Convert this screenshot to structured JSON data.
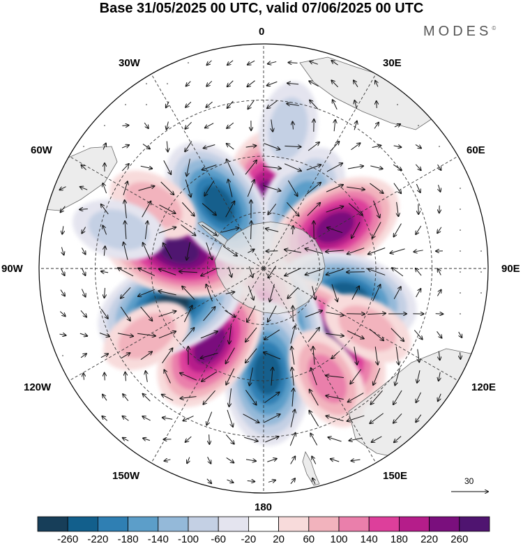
{
  "title": "Base 31/05/2025 00 UTC, valid 07/06/2025 00 UTC",
  "brand": "MODES",
  "brand_mark": "©",
  "longitude_labels": {
    "lon_0": "0",
    "lon_30e": "30E",
    "lon_60e": "60E",
    "lon_90e": "90E",
    "lon_120e": "120E",
    "lon_150e": "150E",
    "lon_180": "180",
    "lon_150w": "150W",
    "lon_120w": "120W",
    "lon_90w": "90W",
    "lon_60w": "60W",
    "lon_30w": "30W"
  },
  "reference_vector": {
    "value": "30"
  },
  "colorbar": {
    "ticks": [
      "-260",
      "-220",
      "-180",
      "-140",
      "-100",
      "-60",
      "-20",
      "20",
      "60",
      "100",
      "140",
      "180",
      "220",
      "260"
    ],
    "colors": [
      "#173e59",
      "#125f8c",
      "#2f7fb3",
      "#5c9ec9",
      "#94b9d9",
      "#c4d0e4",
      "#e4e4ef",
      "#ffffff",
      "#f8dbdb",
      "#f2b3bd",
      "#ea7fab",
      "#dd3f9b",
      "#b51d8a",
      "#7a0f7d",
      "#4f1470"
    ]
  },
  "map": {
    "ocean_color": "#ffffff",
    "land_color": "#e6e6e6",
    "anomalies": [
      {
        "lon": 2,
        "colat": 18,
        "value": 220
      },
      {
        "lon": 30,
        "colat": 20,
        "value": -160
      },
      {
        "lon": 60,
        "colat": 22,
        "value": 220
      },
      {
        "lon": 108,
        "colat": 24,
        "value": -220
      },
      {
        "lon": 140,
        "colat": 26,
        "value": 260
      },
      {
        "lon": 160,
        "colat": 15,
        "value": -180
      },
      {
        "lon": -178,
        "colat": 12,
        "value": 140
      },
      {
        "lon": -182,
        "colat": 28,
        "value": -240
      },
      {
        "lon": -145,
        "colat": 25,
        "value": 220
      },
      {
        "lon": -112,
        "colat": 27,
        "value": -260
      },
      {
        "lon": -78,
        "colat": 23,
        "value": 260
      },
      {
        "lon": -35,
        "colat": 21,
        "value": -220
      },
      {
        "lon": 120,
        "colat": 32,
        "value": 60
      },
      {
        "lon": -60,
        "colat": 34,
        "value": 60
      },
      {
        "lon": -75,
        "colat": 40,
        "value": -60
      },
      {
        "lon": 10,
        "colat": 38,
        "value": -60
      },
      {
        "lon": 150,
        "colat": 34,
        "value": 100
      },
      {
        "lon": -120,
        "colat": 36,
        "value": 60
      }
    ]
  }
}
